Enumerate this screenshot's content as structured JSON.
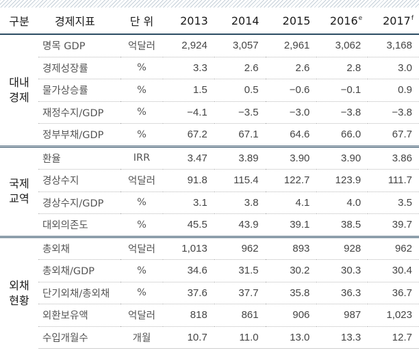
{
  "header": {
    "group": "구분",
    "indicator": "경제지표",
    "unit": "단 위",
    "years": [
      {
        "label": "2013",
        "mark": ""
      },
      {
        "label": "2014",
        "mark": ""
      },
      {
        "label": "2015",
        "mark": ""
      },
      {
        "label": "2016",
        "mark": "e"
      },
      {
        "label": "2017",
        "mark": "f"
      }
    ]
  },
  "sections": [
    {
      "group_lines": [
        "대내",
        "경제"
      ],
      "rows": [
        {
          "indicator": "명목 GDP",
          "unit": "억달러",
          "values": [
            "2,924",
            "3,057",
            "2,961",
            "3,062",
            "3,168"
          ]
        },
        {
          "indicator": "경제성장률",
          "unit": "%",
          "values": [
            "3.3",
            "2.6",
            "2.6",
            "2.8",
            "3.0"
          ]
        },
        {
          "indicator": "물가상승률",
          "unit": "%",
          "values": [
            "1.5",
            "0.5",
            "−0.6",
            "−0.1",
            "0.9"
          ]
        },
        {
          "indicator": "재정수지/GDP",
          "unit": "%",
          "values": [
            "−4.1",
            "−3.5",
            "−3.0",
            "−3.8",
            "−3.8"
          ]
        },
        {
          "indicator": "정부부채/GDP",
          "unit": "%",
          "values": [
            "67.2",
            "67.1",
            "64.6",
            "66.0",
            "67.7"
          ]
        }
      ]
    },
    {
      "group_lines": [
        "국제",
        "교역"
      ],
      "rows": [
        {
          "indicator": "환율",
          "unit": "IRR",
          "values": [
            "3.47",
            "3.89",
            "3.90",
            "3.90",
            "3.86"
          ]
        },
        {
          "indicator": "경상수지",
          "unit": "억달러",
          "values": [
            "91.8",
            "115.4",
            "122.7",
            "123.9",
            "111.7"
          ]
        },
        {
          "indicator": "경상수지/GDP",
          "unit": "%",
          "values": [
            "3.1",
            "3.8",
            "4.1",
            "4.0",
            "3.5"
          ]
        },
        {
          "indicator": "대외의존도",
          "unit": "%",
          "values": [
            "45.5",
            "43.9",
            "39.1",
            "38.5",
            "39.7"
          ]
        }
      ]
    },
    {
      "group_lines": [
        "외채",
        "현황"
      ],
      "rows": [
        {
          "indicator": "총외채",
          "unit": "억달러",
          "values": [
            "1,013",
            "962",
            "893",
            "928",
            "962"
          ]
        },
        {
          "indicator": "총외채/GDP",
          "unit": "%",
          "values": [
            "34.6",
            "31.5",
            "30.2",
            "30.3",
            "30.4"
          ]
        },
        {
          "indicator": "단기외채/총외채",
          "unit": "%",
          "values": [
            "37.6",
            "37.7",
            "35.8",
            "36.3",
            "36.7"
          ]
        },
        {
          "indicator": "외환보유액",
          "unit": "억달러",
          "values": [
            "818",
            "861",
            "906",
            "987",
            "1,023"
          ]
        },
        {
          "indicator": "수입개월수",
          "unit": "개월",
          "values": [
            "10.7",
            "11.0",
            "13.0",
            "13.3",
            "12.7"
          ]
        }
      ]
    }
  ]
}
